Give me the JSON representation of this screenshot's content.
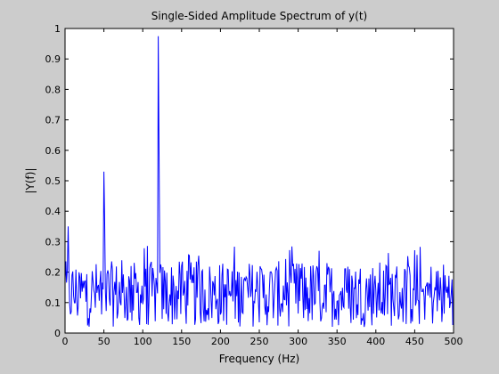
{
  "chart_data": {
    "type": "line",
    "title": "Single-Sided Amplitude Spectrum of y(t)",
    "xlabel": "Frequency (Hz)",
    "ylabel": "|Y(f)|",
    "xlim": [
      0,
      500
    ],
    "ylim": [
      0,
      1
    ],
    "grid": false,
    "xticks": [
      "0",
      "50",
      "100",
      "150",
      "200",
      "250",
      "300",
      "350",
      "400",
      "450",
      "500"
    ],
    "yticks": [
      "0",
      "0.1",
      "0.2",
      "0.3",
      "0.4",
      "0.5",
      "0.6",
      "0.7",
      "0.8",
      "0.9",
      "1"
    ],
    "series": [
      {
        "color": "#0000ff",
        "peaks": [
          {
            "x": 4,
            "y": 0.35
          },
          {
            "x": 50,
            "y": 0.53
          },
          {
            "x": 51,
            "y": 0.36
          },
          {
            "x": 119,
            "y": 0.13
          },
          {
            "x": 120,
            "y": 0.975
          },
          {
            "x": 121,
            "y": 0.59
          }
        ],
        "noise_floor_mean": 0.12,
        "noise_max": 0.29
      }
    ]
  },
  "colors": {
    "figure_bg": "#cccccc",
    "axes_bg": "#ffffff",
    "line": "#0000ff"
  }
}
